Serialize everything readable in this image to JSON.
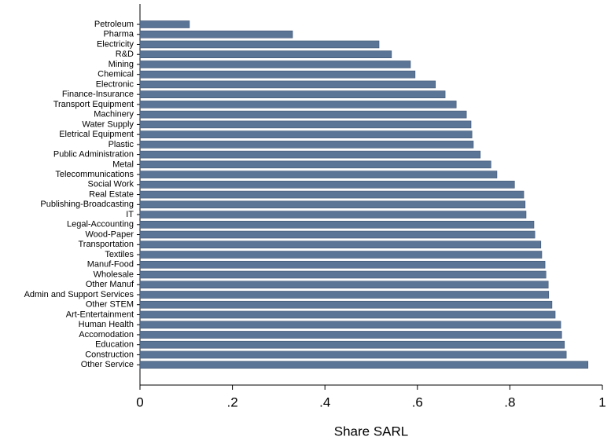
{
  "chart_data": {
    "type": "hbar",
    "categories": [
      "Petroleum",
      "Pharma",
      "Electricity",
      "R&D",
      "Mining",
      "Chemical",
      "Electronic",
      "Finance-Insurance",
      "Transport Equipment",
      "Machinery",
      "Water Supply",
      "Eletrical Equipment",
      "Plastic",
      "Public Administration",
      "Metal",
      "Telecommunications",
      "Social Work",
      "Real Estate",
      "Publishing-Broadcasting",
      "IT",
      "Legal-Accounting",
      "Wood-Paper",
      "Transportation",
      "Textiles",
      "Manuf-Food",
      "Wholesale",
      "Other Manuf",
      "Admin and Support Services",
      "Other STEM",
      "Art-Entertainment",
      "Human Health",
      "Accomodation",
      "Education",
      "Construction",
      "Other Service"
    ],
    "values": [
      0.107,
      0.33,
      0.517,
      0.544,
      0.585,
      0.595,
      0.639,
      0.66,
      0.684,
      0.706,
      0.716,
      0.718,
      0.721,
      0.736,
      0.759,
      0.772,
      0.81,
      0.83,
      0.833,
      0.835,
      0.852,
      0.854,
      0.867,
      0.869,
      0.876,
      0.878,
      0.883,
      0.884,
      0.891,
      0.898,
      0.91,
      0.912,
      0.918,
      0.922,
      0.969
    ],
    "color": "#5b7597",
    "xlabel": "Share SARL",
    "xlim": [
      0,
      1
    ],
    "xticks": [
      0,
      {
        "value": 0.2,
        "label": ".2"
      },
      {
        "value": 0.4,
        "label": ".4"
      },
      {
        "value": 0.6,
        "label": ".6"
      },
      {
        "value": 0.8,
        "label": ".8"
      },
      1
    ]
  }
}
